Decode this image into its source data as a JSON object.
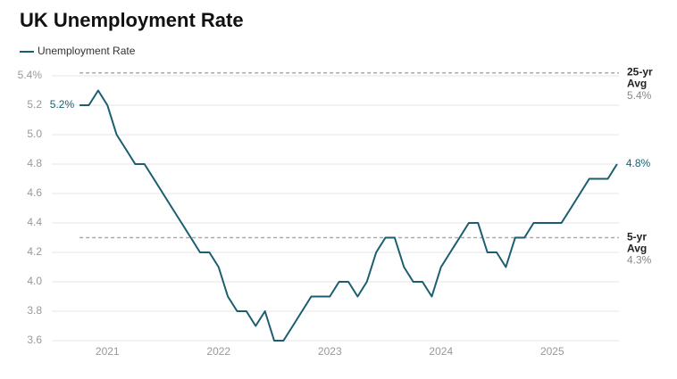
{
  "chart_data": {
    "type": "line",
    "title": "UK Unemployment Rate",
    "x": [
      2020.75,
      2020.833,
      2020.917,
      2021,
      2021.083,
      2021.167,
      2021.25,
      2021.333,
      2021.417,
      2021.5,
      2021.583,
      2021.667,
      2021.75,
      2021.833,
      2021.917,
      2022,
      2022.083,
      2022.167,
      2022.25,
      2022.333,
      2022.417,
      2022.5,
      2022.583,
      2022.667,
      2022.75,
      2022.833,
      2022.917,
      2023,
      2023.083,
      2023.167,
      2023.25,
      2023.333,
      2023.417,
      2023.5,
      2023.583,
      2023.667,
      2023.75,
      2023.833,
      2023.917,
      2024,
      2024.083,
      2024.167,
      2024.25,
      2024.333,
      2024.417,
      2024.5,
      2024.583,
      2024.667,
      2024.75,
      2024.833,
      2024.917,
      2025,
      2025.083,
      2025.167,
      2025.25,
      2025.333,
      2025.417,
      2025.5,
      2025.583
    ],
    "series": [
      {
        "name": "Unemployment Rate",
        "color": "#1b5e70",
        "values": [
          5.2,
          5.2,
          5.3,
          5.2,
          5.0,
          4.9,
          4.8,
          4.8,
          4.7,
          4.6,
          4.5,
          4.4,
          4.3,
          4.2,
          4.2,
          4.1,
          3.9,
          3.8,
          3.8,
          3.7,
          3.8,
          3.6,
          3.6,
          3.7,
          3.8,
          3.9,
          3.9,
          3.9,
          4.0,
          4.0,
          3.9,
          4.0,
          4.2,
          4.3,
          4.3,
          4.1,
          4.0,
          4.0,
          3.9,
          4.1,
          4.2,
          4.3,
          4.4,
          4.4,
          4.2,
          4.2,
          4.1,
          4.3,
          4.3,
          4.4,
          4.4,
          4.4,
          4.4,
          4.5,
          4.6,
          4.7,
          4.7,
          4.7,
          4.8
        ],
        "value_labels": [
          "5.2%",
          null,
          null,
          null,
          null,
          null,
          null,
          null,
          null,
          null,
          null,
          null,
          null,
          null,
          null,
          null,
          null,
          null,
          null,
          null,
          null,
          null,
          null,
          null,
          null,
          null,
          null,
          null,
          null,
          null,
          null,
          null,
          null,
          null,
          null,
          null,
          null,
          null,
          null,
          null,
          null,
          null,
          null,
          null,
          null,
          null,
          null,
          null,
          null,
          null,
          null,
          null,
          null,
          null,
          null,
          null,
          null,
          null,
          "4.8%"
        ]
      }
    ],
    "xlim": [
      2020.5,
      2025.6
    ],
    "xticks": [
      2021,
      2022,
      2023,
      2024,
      2025
    ],
    "ylim": [
      3.6,
      5.4
    ],
    "yticks": [
      3.6,
      3.8,
      {
        "value": 4.0,
        "label": "4.0"
      },
      4.2,
      4.4,
      4.6,
      4.8,
      {
        "value": 5.0,
        "label": "5.0"
      },
      5.2,
      {
        "value": 5.4,
        "label": "5.4%"
      }
    ],
    "grid": true,
    "reference_lines": [
      {
        "label": "25-yr Avg",
        "value": 5.42,
        "value_label": "5.4%"
      },
      {
        "label": "5-yr Avg",
        "value": 4.3,
        "value_label": "4.3%"
      }
    ]
  }
}
